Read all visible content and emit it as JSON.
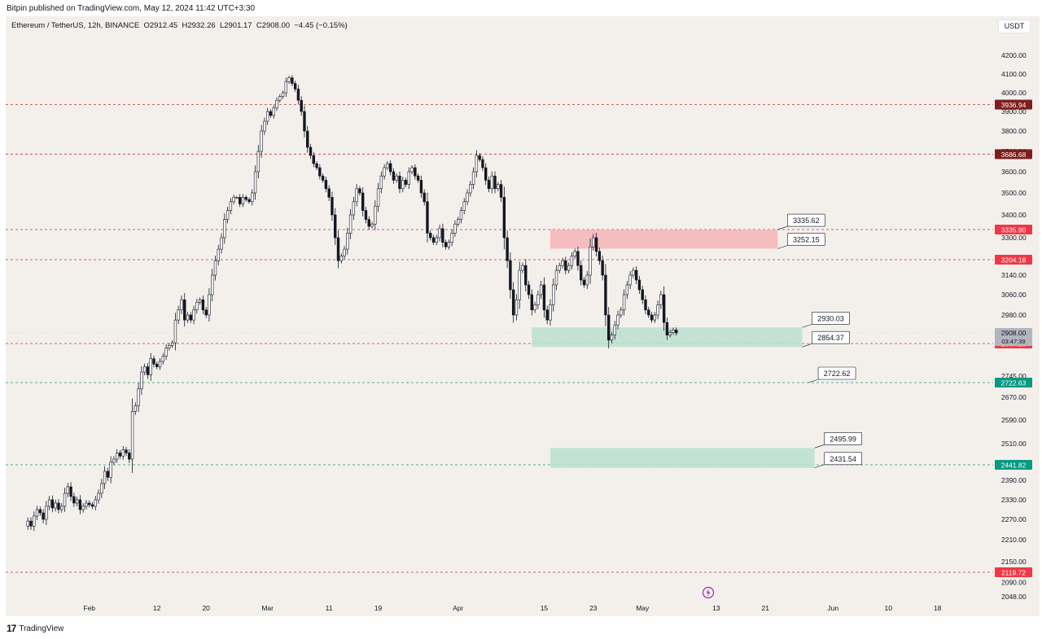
{
  "header": {
    "published_text": "Bitpin published on TradingView.com, May 12, 2024 11:42 UTC+3:30"
  },
  "symbol": {
    "info_text": "Ethereum / TetherUS, 12h, BINANCE  O2912.45  H2932.26  L2901.17  C2908.00  −4.45 (−0.15%)"
  },
  "currency_button": "USDT",
  "footer": {
    "brand": "TradingView"
  },
  "colors": {
    "up": "#ffffff",
    "down": "#131722",
    "wick": "#131722",
    "resistance": "#c0392b",
    "support": "#1e9c6e",
    "red_zone": "#f4b4b8",
    "green_zone": "#b8e0cf",
    "current_label": "#b2b5be",
    "dark_red_label": "#7f1d1d",
    "red_label": "#f23645",
    "green_label": "#089981"
  },
  "chart_data": {
    "type": "candlestick",
    "timeframe": "12h",
    "x_tick_labels": [
      {
        "label": "Feb",
        "date": "2024-02-01"
      },
      {
        "label": "12",
        "date": "2024-02-12"
      },
      {
        "label": "20",
        "date": "2024-02-20"
      },
      {
        "label": "Mar",
        "date": "2024-03-01"
      },
      {
        "label": "11",
        "date": "2024-03-11"
      },
      {
        "label": "19",
        "date": "2024-03-19"
      },
      {
        "label": "Apr",
        "date": "2024-04-01"
      },
      {
        "label": "15",
        "date": "2024-04-15"
      },
      {
        "label": "23",
        "date": "2024-04-23"
      },
      {
        "label": "May",
        "date": "2024-05-01"
      },
      {
        "label": "13",
        "date": "2024-05-13"
      },
      {
        "label": "21",
        "date": "2024-05-21"
      },
      {
        "label": "Jun",
        "date": "2024-06-01"
      },
      {
        "label": "10",
        "date": "2024-06-10"
      },
      {
        "label": "18",
        "date": "2024-06-18"
      }
    ],
    "y_tick_labels": [
      "4200.00",
      "4100.00",
      "4000.00",
      "3900.00",
      "3800.00",
      "3700.00",
      "3600.00",
      "3500.00",
      "3400.00",
      "3300.00",
      "3140.00",
      "3060.00",
      "2980.00",
      "2745.00",
      "2670.00",
      "2590.00",
      "2510.00",
      "2390.00",
      "2330.00",
      "2270.00",
      "2210.00",
      "2150.00",
      "2090.00",
      "2048.00"
    ],
    "horizontal_lines": [
      {
        "price": 3936.94,
        "label": "3936.94",
        "style": "dark_red"
      },
      {
        "price": 3686.68,
        "label": "3686.68",
        "style": "dark_red"
      },
      {
        "price": 3335.9,
        "label": "3335.90",
        "style": "red"
      },
      {
        "price": 3204.18,
        "label": "3204.18",
        "style": "red"
      },
      {
        "price": 2867.15,
        "label": "2867.15",
        "style": "red"
      },
      {
        "price": 2722.63,
        "label": "2722.63",
        "style": "green"
      },
      {
        "price": 2441.82,
        "label": "2441.82",
        "style": "green"
      },
      {
        "price": 2119.72,
        "label": "2119.72",
        "style": "red"
      }
    ],
    "current_price": {
      "price": 2908.0,
      "label": "2908.00",
      "countdown": "03:47:39"
    },
    "zones": [
      {
        "type": "resistance",
        "start": "2024-04-16",
        "end": "2024-05-23",
        "top": 3335.62,
        "bottom": 3252.15,
        "top_label": "3335.62",
        "bottom_label": "3252.15"
      },
      {
        "type": "support",
        "start": "2024-04-13",
        "end": "2024-05-27",
        "top": 2930.03,
        "bottom": 2854.37,
        "top_label": "2930.03",
        "bottom_label": "2854.37"
      },
      {
        "type": "support",
        "start": "2024-04-16",
        "end": "2024-05-29",
        "top": 2495.99,
        "bottom": 2431.54,
        "top_label": "2495.99",
        "bottom_label": "2431.54"
      }
    ],
    "target_labels": [
      {
        "price": 2722.62,
        "label": "2722.62"
      }
    ],
    "candles_close": [
      2265,
      2250,
      2280,
      2300,
      2290,
      2270,
      2310,
      2330,
      2305,
      2320,
      2300,
      2310,
      2350,
      2370,
      2340,
      2320,
      2330,
      2300,
      2310,
      2320,
      2315,
      2310,
      2330,
      2350,
      2380,
      2420,
      2400,
      2450,
      2460,
      2480,
      2470,
      2490,
      2480,
      2460,
      2620,
      2640,
      2700,
      2760,
      2780,
      2750,
      2810,
      2790,
      2780,
      2800,
      2820,
      2850,
      2860,
      2870,
      2960,
      3000,
      3040,
      2960,
      2980,
      2960,
      3000,
      3030,
      3040,
      3000,
      2980,
      3060,
      3140,
      3200,
      3250,
      3300,
      3380,
      3420,
      3460,
      3480,
      3480,
      3450,
      3480,
      3470,
      3460,
      3500,
      3600,
      3700,
      3800,
      3850,
      3900,
      3880,
      3920,
      3960,
      3980,
      4000,
      4060,
      4080,
      4050,
      4020,
      3960,
      3900,
      3800,
      3720,
      3680,
      3640,
      3620,
      3580,
      3560,
      3520,
      3480,
      3400,
      3300,
      3200,
      3220,
      3250,
      3320,
      3400,
      3460,
      3520,
      3500,
      3420,
      3380,
      3350,
      3360,
      3440,
      3520,
      3580,
      3620,
      3640,
      3600,
      3560,
      3580,
      3520,
      3560,
      3540,
      3600,
      3620,
      3580,
      3560,
      3500,
      3460,
      3320,
      3300,
      3280,
      3300,
      3340,
      3280,
      3260,
      3280,
      3320,
      3360,
      3380,
      3420,
      3460,
      3500,
      3540,
      3600,
      3680,
      3660,
      3620,
      3560,
      3520,
      3580,
      3520,
      3540,
      3480,
      3300,
      3200,
      3080,
      2980,
      3040,
      3160,
      3180,
      3100,
      3060,
      3000,
      3020,
      3060,
      3100,
      3000,
      2960,
      3020,
      3100,
      3160,
      3180,
      3200,
      3160,
      3180,
      3220,
      3240,
      3180,
      3120,
      3100,
      3140,
      3260,
      3300,
      3240,
      3200,
      3140,
      2980,
      2880,
      2900,
      2940,
      2980,
      3000,
      3060,
      3100,
      3140,
      3160,
      3120,
      3080,
      3040,
      3000,
      2980,
      2960,
      2980,
      3020,
      3060,
      2950,
      2900,
      2910,
      2920,
      2908
    ],
    "price_range": [
      2048,
      4240
    ],
    "date_range": [
      "2024-01-22",
      "2024-06-25"
    ]
  }
}
